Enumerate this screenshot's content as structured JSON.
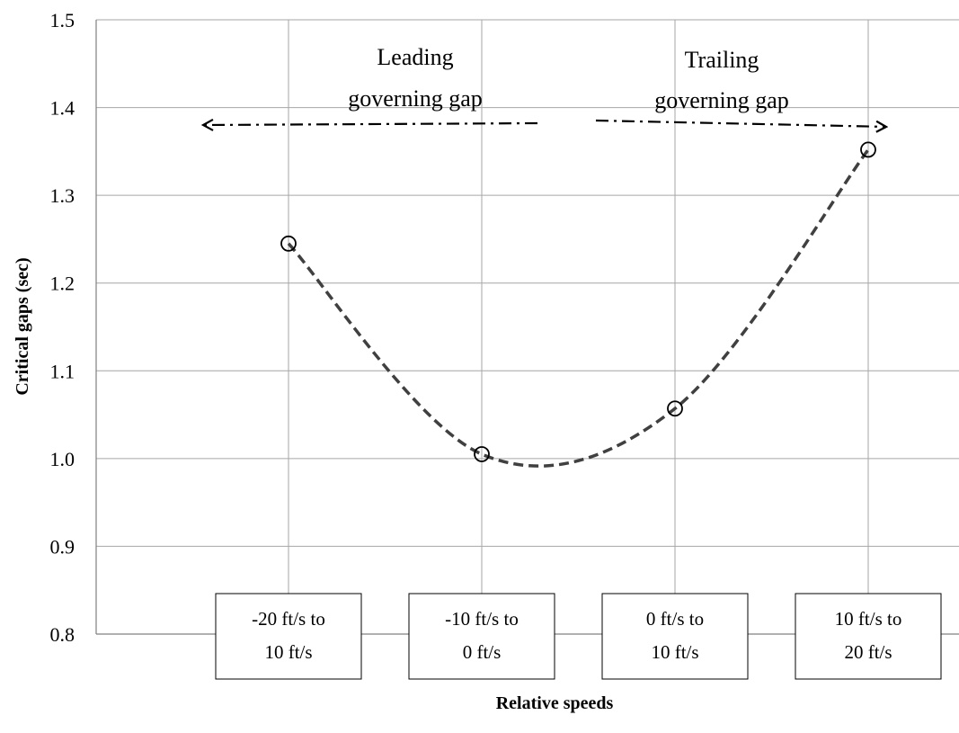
{
  "chart_data": {
    "type": "line",
    "xlabel": "Relative speeds",
    "ylabel": "Critical gaps (sec)",
    "ylim": [
      0.8,
      1.5
    ],
    "yticks": [
      "0.8",
      "0.9",
      "1.0",
      "1.1",
      "1.2",
      "1.3",
      "1.4",
      "1.5"
    ],
    "grid": true,
    "categories": [
      [
        "-20 ft/s to",
        "10 ft/s"
      ],
      [
        "-10 ft/s to",
        "0 ft/s"
      ],
      [
        "0 ft/s to",
        "10 ft/s"
      ],
      [
        "10 ft/s to",
        "20 ft/s"
      ]
    ],
    "values": [
      1.245,
      1.005,
      1.057,
      1.352
    ],
    "annotations": {
      "leading": [
        "Leading",
        "governing gap"
      ],
      "trailing": [
        "Trailing",
        "governing gap"
      ]
    },
    "colors": {
      "line": "#404040",
      "grid": "#a6a6a6",
      "axis": "#808080",
      "marker": "#000000"
    }
  }
}
